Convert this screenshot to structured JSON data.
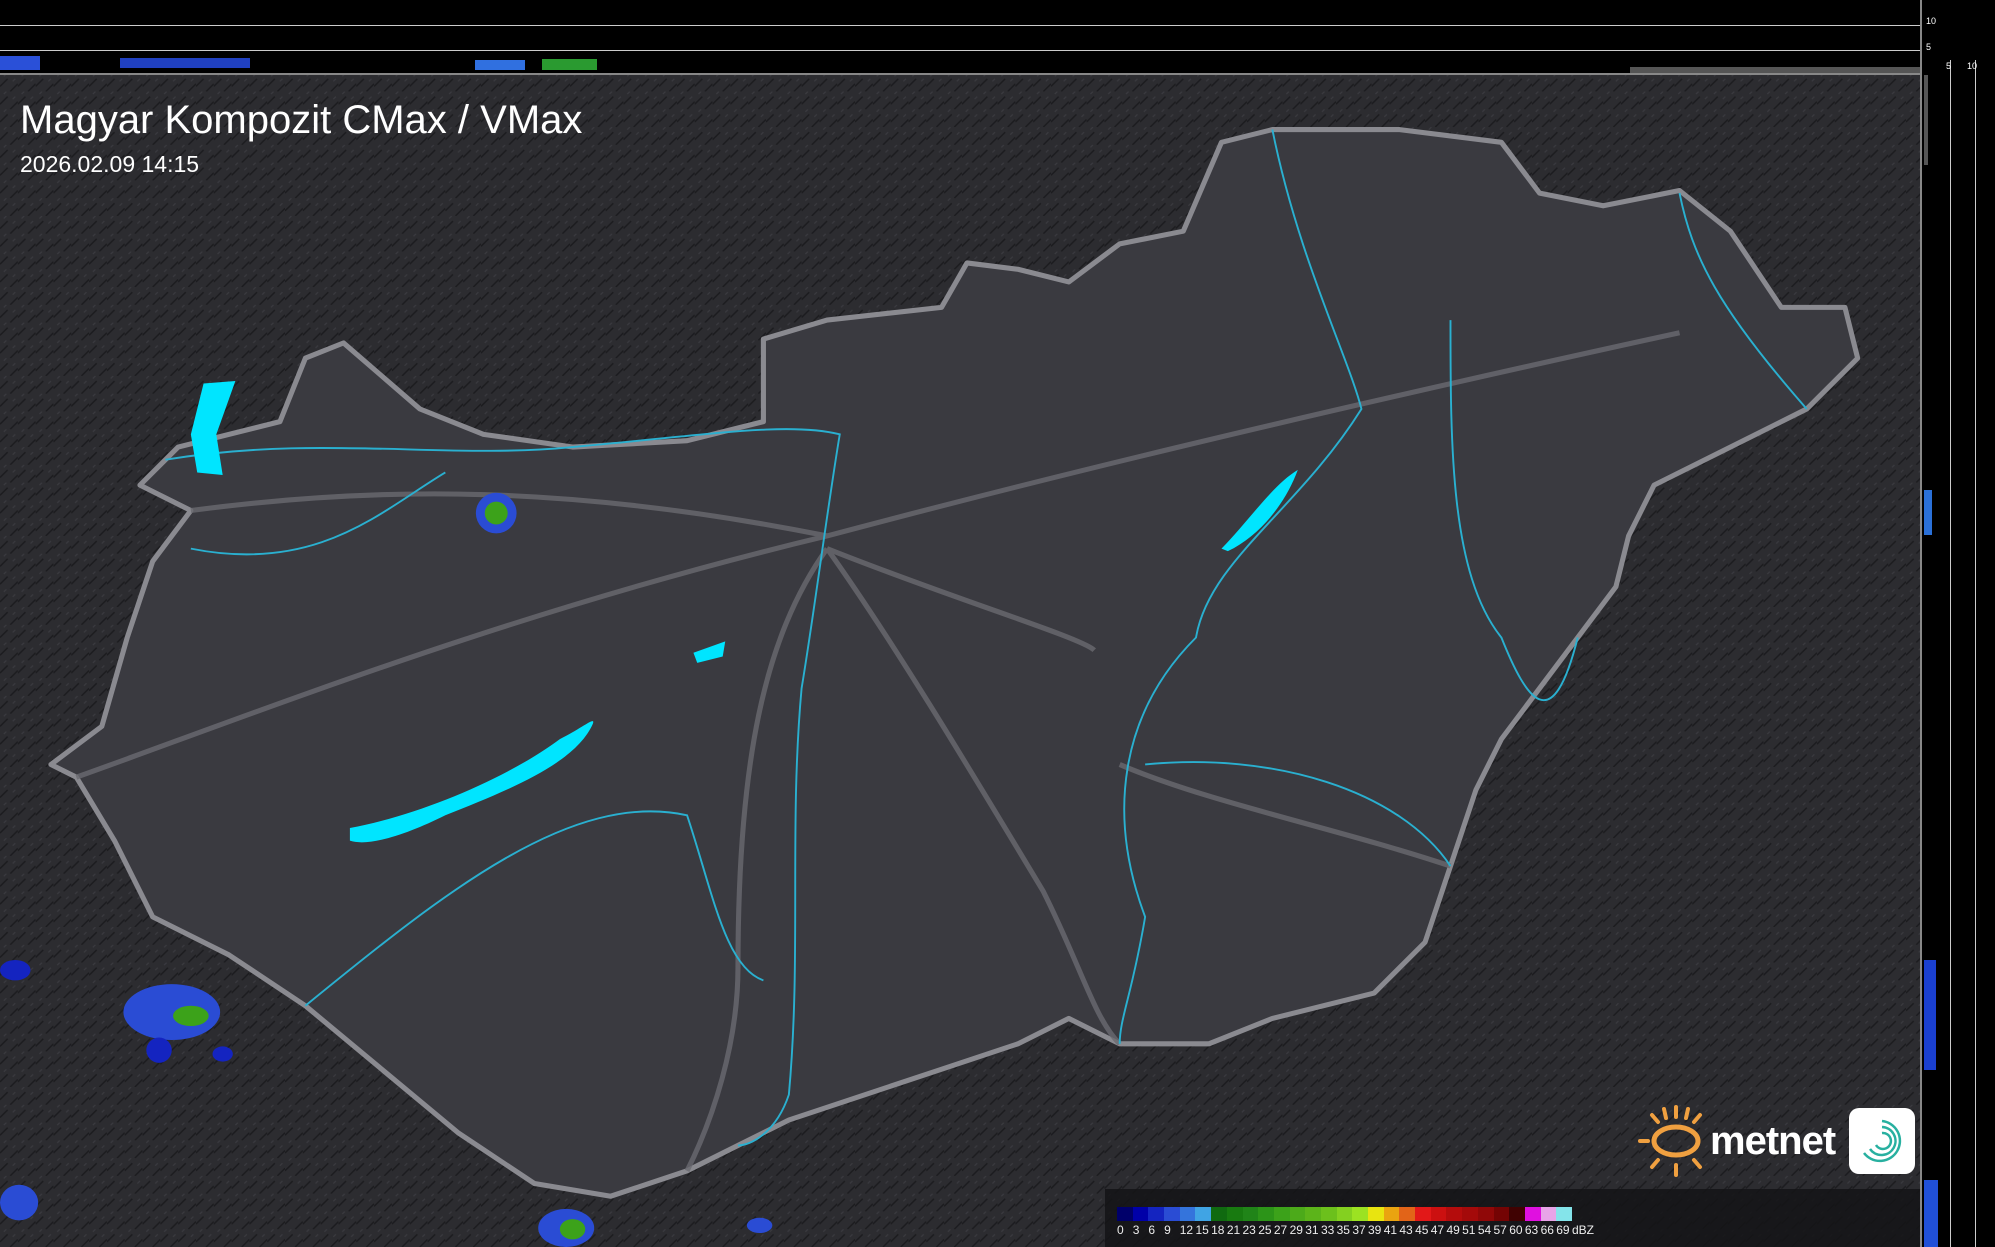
{
  "header": {
    "title": "Magyar Kompozit CMax / VMax",
    "timestamp": "2026.02.09 14:15"
  },
  "side_scale": {
    "top_labels": [
      "10",
      "5"
    ],
    "bottom_labels": [
      "5",
      "10"
    ]
  },
  "legend": {
    "unit": "dBZ",
    "labels": [
      "0",
      "3",
      "6",
      "9",
      "12",
      "15",
      "18",
      "21",
      "23",
      "25",
      "27",
      "29",
      "31",
      "33",
      "35",
      "37",
      "39",
      "41",
      "43",
      "45",
      "47",
      "49",
      "51",
      "54",
      "57",
      "60",
      "63",
      "66",
      "69"
    ],
    "colors": [
      "#00006a",
      "#0000a8",
      "#1424c0",
      "#2a4cd4",
      "#3474dc",
      "#40a4e4",
      "#106a10",
      "#187a10",
      "#208418",
      "#2c9418",
      "#3ca21a",
      "#4caa1a",
      "#5cb41a",
      "#6cc01c",
      "#84d020",
      "#9ce222",
      "#e8e410",
      "#eaa410",
      "#e26418",
      "#e21818",
      "#cc1010",
      "#b40c0c",
      "#a40a0a",
      "#900808",
      "#740404",
      "#400202",
      "#e010e0",
      "#e8a4e8",
      "#84e4ea"
    ]
  },
  "colors": {
    "water": "#00e5ff",
    "river": "#2ab0d0",
    "border": "#8a8a90",
    "land": "#3a3a40",
    "background": "#2a2a2e"
  },
  "logo": {
    "text": "metnet"
  }
}
